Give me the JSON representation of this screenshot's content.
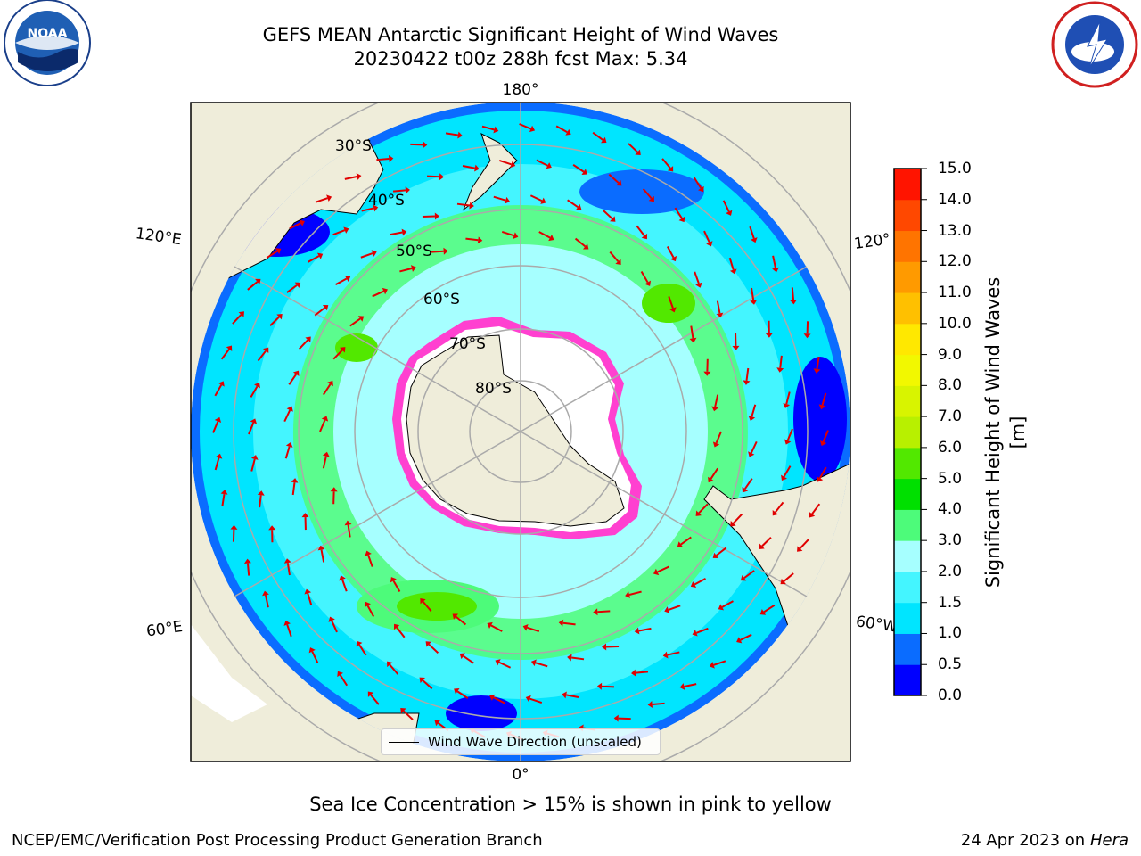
{
  "header": {
    "title_line1": "GEFS MEAN Antarctic Significant Height of Wind Waves",
    "title_line2": "20230422 t00z 288h fcst   Max: 5.34",
    "left_logo_name": "noaa-logo",
    "right_logo_name": "national-weather-service-logo"
  },
  "map": {
    "longitude_labels": {
      "top": "180°",
      "bottom": "0°",
      "upper_left": "120°E",
      "lower_left": "60°E",
      "upper_right": "120°",
      "lower_right": "60°W"
    },
    "latitude_labels": [
      "30°S",
      "40°S",
      "50°S",
      "60°S",
      "70°S",
      "80°S"
    ],
    "legend_label": "Wind Wave Direction (unscaled)"
  },
  "colorbar": {
    "label": "Significant Height of Wind Waves [m]",
    "ticks": [
      "0.0",
      "0.5",
      "1.0",
      "1.5",
      "2.0",
      "3.0",
      "4.0",
      "5.0",
      "6.0",
      "7.0",
      "8.0",
      "9.0",
      "10.0",
      "11.0",
      "12.0",
      "13.0",
      "14.0",
      "15.0"
    ],
    "colors": [
      "#0000ff",
      "#0a6cff",
      "#00e5ff",
      "#44f5ff",
      "#a6ffff",
      "#4dfb7a",
      "#00e000",
      "#52e800",
      "#b8f000",
      "#d8f400",
      "#f2f800",
      "#ffe800",
      "#ffc000",
      "#ff9a00",
      "#ff7400",
      "#ff4800",
      "#ff1400"
    ]
  },
  "footer": {
    "note": "Sea Ice Concentration > 15% is shown in pink to yellow",
    "credit": "NCEP/EMC/Verification Post Processing Product Generation Branch",
    "date_prefix": "24 Apr 2023 on",
    "date_machine": "Hera"
  }
}
